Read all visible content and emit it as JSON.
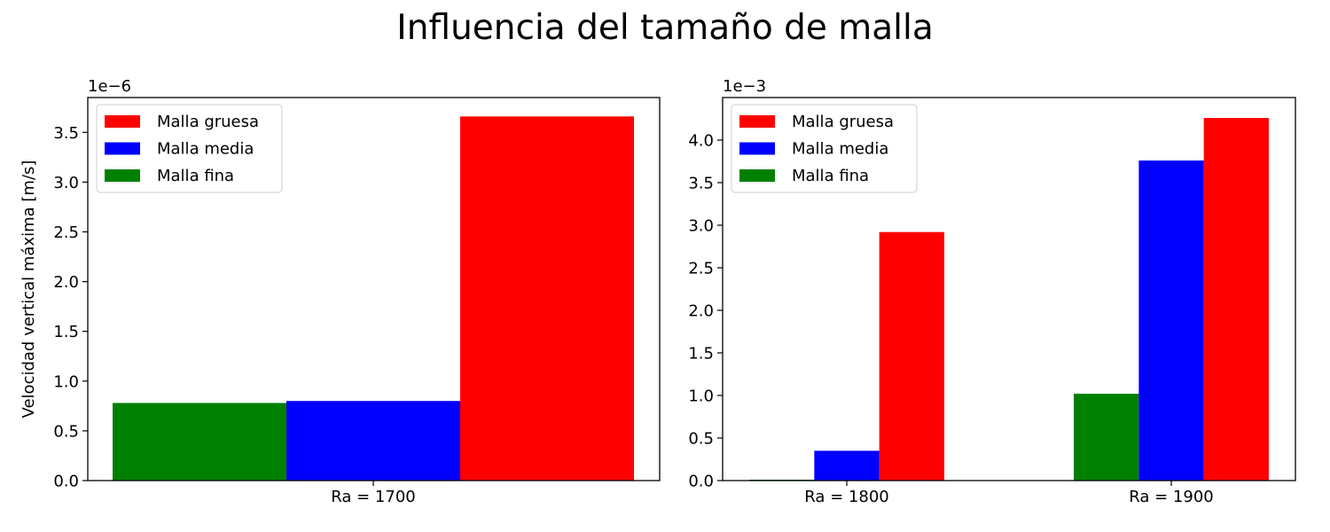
{
  "suptitle": "Influencia del tamaño de malla",
  "colors": {
    "Malla gruesa": "#ff0000",
    "Malla media": "#0000ff",
    "Malla fina": "#008000"
  },
  "chart_data": [
    {
      "type": "bar",
      "ylabel": "Velocidad vertical máxima [m/s]",
      "offset_text": "1e−6",
      "scale": 1e-06,
      "categories": [
        "Ra = 1700"
      ],
      "ylim": [
        0,
        3.85
      ],
      "yticks": [
        "0.0",
        "0.5",
        "1.0",
        "1.5",
        "2.0",
        "2.5",
        "3.0",
        "3.5"
      ],
      "legend": [
        "Malla gruesa",
        "Malla media",
        "Malla fina"
      ],
      "legend_loc": "upper left",
      "bar_order": [
        "Malla fina",
        "Malla media",
        "Malla gruesa"
      ],
      "series": [
        {
          "name": "Malla fina",
          "values": [
            0.78
          ]
        },
        {
          "name": "Malla media",
          "values": [
            0.8
          ]
        },
        {
          "name": "Malla gruesa",
          "values": [
            3.66
          ]
        }
      ]
    },
    {
      "type": "bar",
      "ylabel": "",
      "offset_text": "1e−3",
      "scale": 0.001,
      "categories": [
        "Ra = 1800",
        "Ra = 1900"
      ],
      "ylim": [
        0,
        4.5
      ],
      "yticks": [
        "0.0",
        "0.5",
        "1.0",
        "1.5",
        "2.0",
        "2.5",
        "3.0",
        "3.5",
        "4.0"
      ],
      "legend": [
        "Malla gruesa",
        "Malla media",
        "Malla fina"
      ],
      "legend_loc": "upper left",
      "bar_order": [
        "Malla fina",
        "Malla media",
        "Malla gruesa"
      ],
      "series": [
        {
          "name": "Malla fina",
          "values": [
            0.01,
            1.02
          ]
        },
        {
          "name": "Malla media",
          "values": [
            0.35,
            3.76
          ]
        },
        {
          "name": "Malla gruesa",
          "values": [
            2.92,
            4.26
          ]
        }
      ]
    }
  ]
}
